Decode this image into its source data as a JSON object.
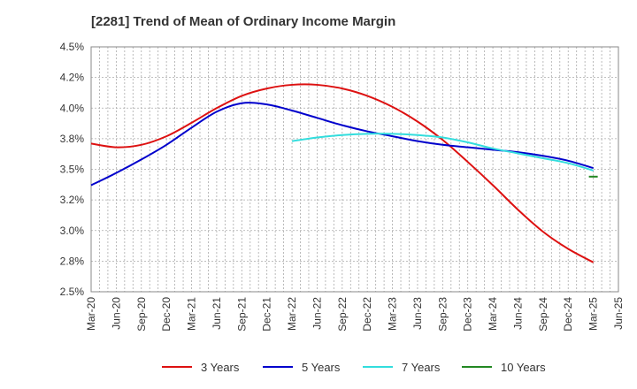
{
  "chart_data": {
    "type": "line",
    "title": "[2281]  Trend of Mean of Ordinary Income Margin",
    "xlabel": "",
    "ylabel": "",
    "x_ticks": [
      "Mar-20",
      "Jun-20",
      "Sep-20",
      "Dec-20",
      "Mar-21",
      "Jun-21",
      "Sep-21",
      "Dec-21",
      "Mar-22",
      "Jun-22",
      "Sep-22",
      "Dec-22",
      "Mar-23",
      "Jun-23",
      "Sep-23",
      "Dec-23",
      "Mar-24",
      "Jun-24",
      "Sep-24",
      "Dec-24",
      "Mar-25",
      "Jun-25"
    ],
    "y_ticks": [
      "2.5%",
      "2.8%",
      "3.0%",
      "3.2%",
      "3.5%",
      "3.8%",
      "4.0%",
      "4.2%",
      "4.5%"
    ],
    "y_tick_values": [
      2.5,
      2.75,
      3.0,
      3.25,
      3.5,
      3.75,
      4.0,
      4.25,
      4.5
    ],
    "ylim": [
      2.5,
      4.5
    ],
    "grid": true,
    "legend_position": "bottom",
    "series": [
      {
        "name": "3 Years",
        "color": "#dd1111",
        "start_index": 0,
        "values": [
          3.71,
          3.68,
          3.7,
          3.77,
          3.88,
          4.0,
          4.1,
          4.16,
          4.19,
          4.19,
          4.16,
          4.1,
          4.01,
          3.89,
          3.74,
          3.56,
          3.37,
          3.17,
          2.99,
          2.85,
          2.74
        ]
      },
      {
        "name": "5 Years",
        "color": "#0000cc",
        "start_index": 0,
        "values": [
          3.37,
          3.47,
          3.58,
          3.7,
          3.84,
          3.97,
          4.04,
          4.03,
          3.98,
          3.92,
          3.86,
          3.81,
          3.77,
          3.73,
          3.7,
          3.68,
          3.66,
          3.64,
          3.61,
          3.57,
          3.51
        ]
      },
      {
        "name": "7 Years",
        "color": "#33dddd",
        "start_index": 8,
        "values": [
          3.73,
          3.76,
          3.78,
          3.79,
          3.79,
          3.78,
          3.76,
          3.72,
          3.67,
          3.63,
          3.59,
          3.55,
          3.49
        ]
      },
      {
        "name": "10 Years",
        "color": "#228822",
        "start_index": 20,
        "values": [
          3.44
        ]
      }
    ]
  }
}
